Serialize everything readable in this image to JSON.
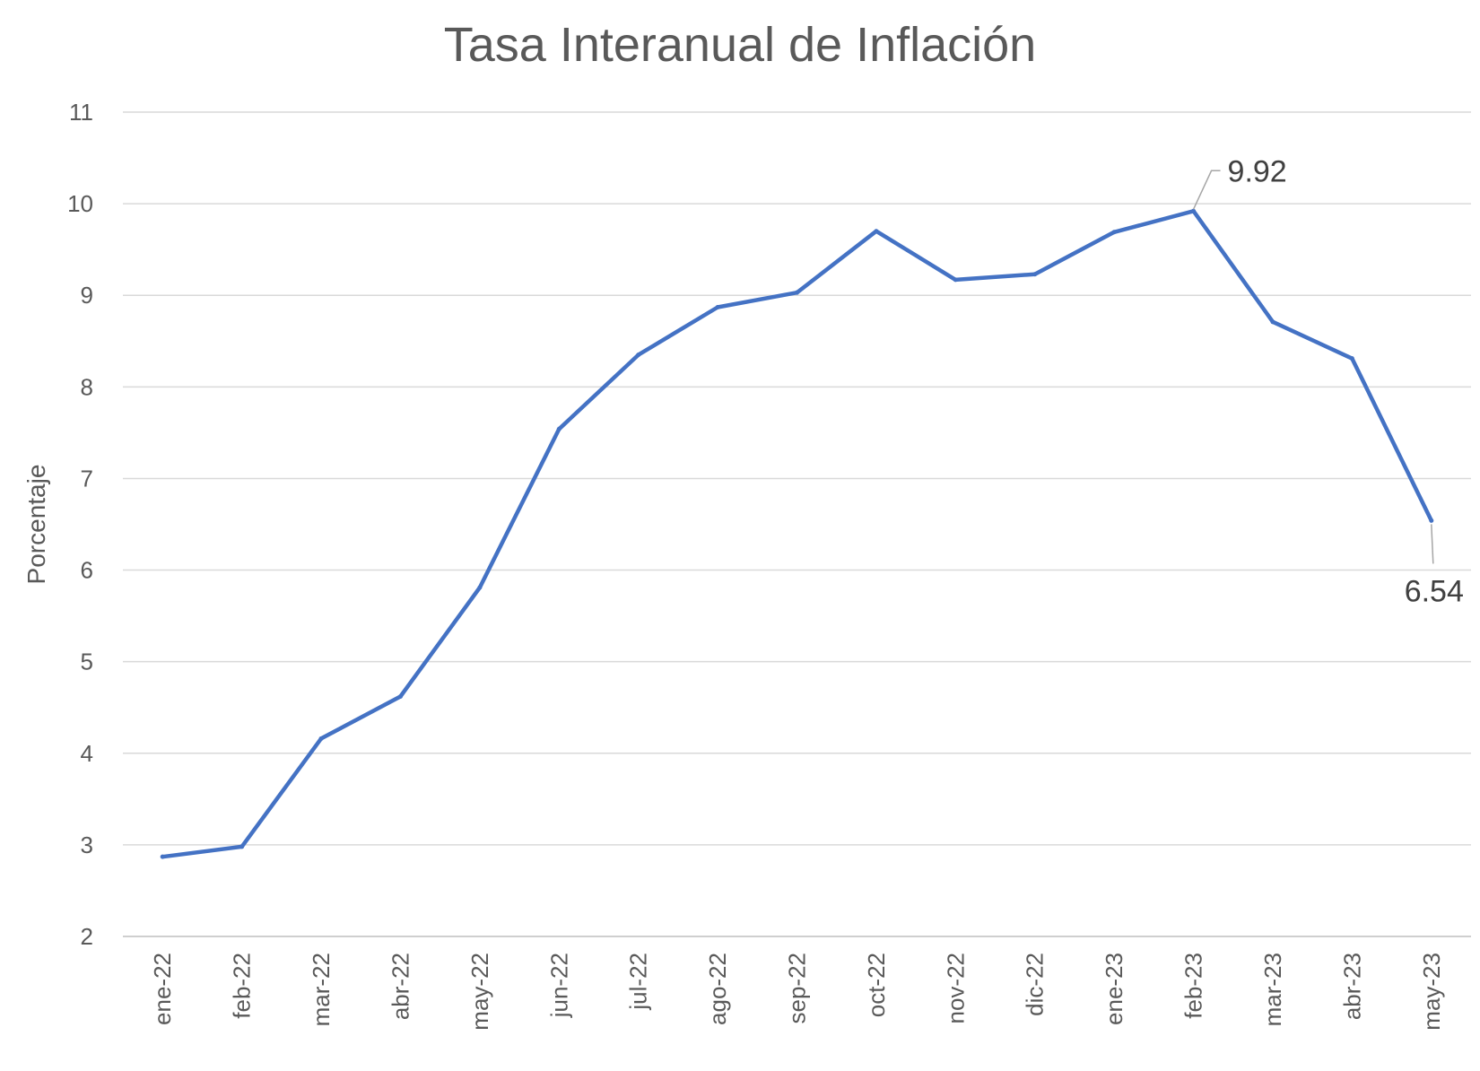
{
  "chart_data": {
    "type": "line",
    "title": "Tasa Interanual de Inflación",
    "xlabel": "",
    "ylabel": "Porcentaje",
    "ylim": [
      2,
      11
    ],
    "yticks": [
      2,
      3,
      4,
      5,
      6,
      7,
      8,
      9,
      10,
      11
    ],
    "grid": true,
    "legend": "none",
    "categories": [
      "ene-22",
      "feb-22",
      "mar-22",
      "abr-22",
      "may-22",
      "jun-22",
      "jul-22",
      "ago-22",
      "sep-22",
      "oct-22",
      "nov-22",
      "dic-22",
      "ene-23",
      "feb-23",
      "mar-23",
      "abr-23",
      "may-23"
    ],
    "series": [
      {
        "color": "#4472c4",
        "values": [
          2.87,
          2.98,
          4.16,
          4.62,
          5.81,
          7.54,
          8.35,
          8.87,
          9.03,
          9.7,
          9.17,
          9.23,
          9.69,
          9.92,
          8.71,
          8.31,
          6.54
        ]
      }
    ],
    "annotations": [
      {
        "category": "feb-23",
        "value": 9.92,
        "label": "9.92"
      },
      {
        "category": "may-23",
        "value": 6.54,
        "label": "6.54"
      }
    ]
  }
}
